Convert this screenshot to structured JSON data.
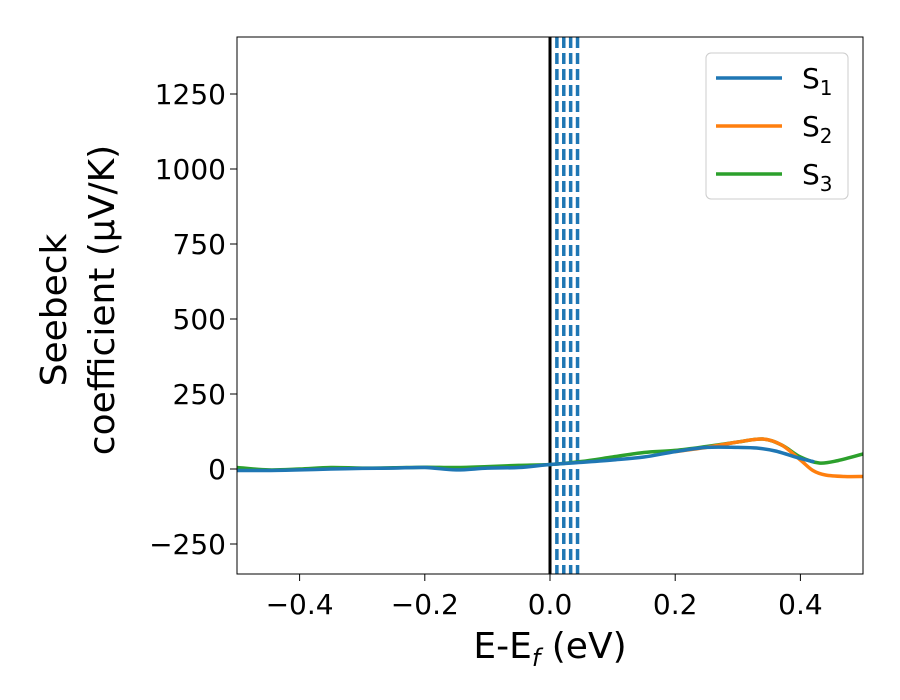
{
  "chart_data": {
    "type": "line",
    "xlabel": {
      "main": "E-E",
      "sub": "f",
      "tail": " (eV)"
    },
    "ylabel": {
      "line1": "Seebeck",
      "line2": "coefficient  (μV/K)"
    },
    "xlim": [
      -0.5,
      0.5
    ],
    "ylim": [
      -350,
      1440
    ],
    "xticks": [
      -0.4,
      -0.2,
      0.0,
      0.2,
      0.4
    ],
    "xtick_labels": [
      "−0.4",
      "−0.2",
      "0.0",
      "0.2",
      "0.4"
    ],
    "yticks": [
      -250,
      0,
      250,
      500,
      750,
      1000,
      1250
    ],
    "ytick_labels": [
      "−250",
      "0",
      "250",
      "500",
      "750",
      "1000",
      "1250"
    ],
    "grid": false,
    "legend_position": "top-right",
    "vlines": [
      {
        "x": 0.0,
        "style": "solid",
        "color": "#000000"
      },
      {
        "x": 0.011,
        "style": "dashed",
        "color": "#1f77b4"
      },
      {
        "x": 0.022,
        "style": "dashed",
        "color": "#1f77b4"
      },
      {
        "x": 0.033,
        "style": "dashed",
        "color": "#1f77b4"
      },
      {
        "x": 0.044,
        "style": "dashed",
        "color": "#1f77b4"
      }
    ],
    "series": [
      {
        "name_main": "S",
        "name_sub": "1",
        "color": "#1f77b4",
        "points": [
          [
            -0.5,
            -5
          ],
          [
            -0.45,
            -5
          ],
          [
            -0.4,
            -3
          ],
          [
            -0.35,
            0
          ],
          [
            -0.3,
            2
          ],
          [
            -0.25,
            3
          ],
          [
            -0.2,
            5
          ],
          [
            -0.15,
            -3
          ],
          [
            -0.1,
            3
          ],
          [
            -0.05,
            5
          ],
          [
            0.0,
            15
          ],
          [
            0.05,
            22
          ],
          [
            0.1,
            30
          ],
          [
            0.15,
            40
          ],
          [
            0.2,
            58
          ],
          [
            0.25,
            72
          ],
          [
            0.3,
            72
          ],
          [
            0.33,
            70
          ],
          [
            0.36,
            60
          ],
          [
            0.4,
            35
          ],
          [
            0.42,
            25
          ]
        ]
      },
      {
        "name_main": "S",
        "name_sub": "2",
        "color": "#ff7f0e",
        "points": [
          [
            0.2,
            58
          ],
          [
            0.25,
            72
          ],
          [
            0.3,
            90
          ],
          [
            0.34,
            100
          ],
          [
            0.37,
            80
          ],
          [
            0.4,
            30
          ],
          [
            0.42,
            -5
          ],
          [
            0.44,
            -20
          ],
          [
            0.47,
            -25
          ],
          [
            0.5,
            -25
          ]
        ]
      },
      {
        "name_main": "S",
        "name_sub": "3",
        "color": "#2ca02c",
        "points": [
          [
            -0.5,
            5
          ],
          [
            -0.45,
            -3
          ],
          [
            -0.4,
            0
          ],
          [
            -0.35,
            5
          ],
          [
            -0.3,
            3
          ],
          [
            -0.25,
            4
          ],
          [
            -0.2,
            6
          ],
          [
            -0.15,
            5
          ],
          [
            -0.1,
            8
          ],
          [
            -0.05,
            12
          ],
          [
            0.0,
            15
          ],
          [
            0.05,
            25
          ],
          [
            0.1,
            40
          ],
          [
            0.15,
            55
          ],
          [
            0.2,
            62
          ],
          [
            0.25,
            75
          ],
          [
            0.3,
            90
          ],
          [
            0.34,
            100
          ],
          [
            0.37,
            80
          ],
          [
            0.4,
            40
          ],
          [
            0.43,
            20
          ],
          [
            0.46,
            28
          ],
          [
            0.5,
            50
          ]
        ]
      }
    ]
  }
}
